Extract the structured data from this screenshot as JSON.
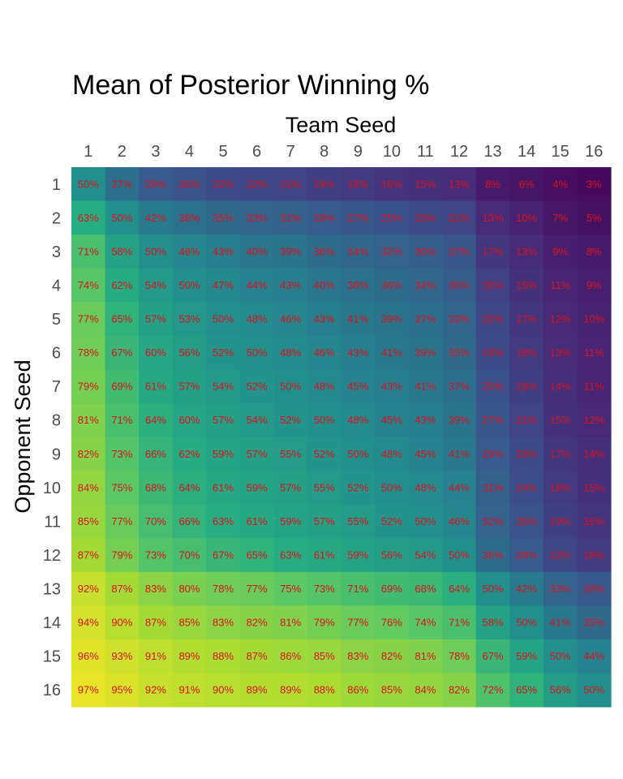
{
  "chart_data": {
    "type": "heatmap",
    "title": "Mean of Posterior Winning %",
    "xlabel": "Team Seed",
    "ylabel": "Opponent Seed",
    "x_categories": [
      "1",
      "2",
      "3",
      "4",
      "5",
      "6",
      "7",
      "8",
      "9",
      "10",
      "11",
      "12",
      "13",
      "14",
      "15",
      "16"
    ],
    "y_categories": [
      "1",
      "2",
      "3",
      "4",
      "5",
      "6",
      "7",
      "8",
      "9",
      "10",
      "11",
      "12",
      "13",
      "14",
      "15",
      "16"
    ],
    "x_axis_position": "top",
    "value_unit": "%",
    "colormap": "viridis",
    "label_color": "#e0101a",
    "values": [
      [
        50,
        37,
        29,
        26,
        23,
        22,
        21,
        19,
        18,
        16,
        15,
        13,
        8,
        6,
        4,
        3
      ],
      [
        63,
        50,
        42,
        38,
        35,
        33,
        31,
        29,
        27,
        25,
        23,
        21,
        13,
        10,
        7,
        5
      ],
      [
        71,
        58,
        50,
        46,
        43,
        40,
        39,
        36,
        34,
        32,
        30,
        27,
        17,
        13,
        9,
        8
      ],
      [
        74,
        62,
        54,
        50,
        47,
        44,
        43,
        40,
        38,
        36,
        34,
        30,
        20,
        15,
        11,
        9
      ],
      [
        77,
        65,
        57,
        53,
        50,
        48,
        46,
        43,
        41,
        39,
        37,
        33,
        22,
        17,
        12,
        10
      ],
      [
        78,
        67,
        60,
        56,
        52,
        50,
        48,
        46,
        43,
        41,
        39,
        35,
        23,
        18,
        13,
        11
      ],
      [
        79,
        69,
        61,
        57,
        54,
        52,
        50,
        48,
        45,
        43,
        41,
        37,
        25,
        19,
        14,
        11
      ],
      [
        81,
        71,
        64,
        60,
        57,
        54,
        52,
        50,
        48,
        45,
        43,
        39,
        27,
        21,
        15,
        12
      ],
      [
        82,
        73,
        66,
        62,
        59,
        57,
        55,
        52,
        50,
        48,
        45,
        41,
        29,
        23,
        17,
        14
      ],
      [
        84,
        75,
        68,
        64,
        61,
        59,
        57,
        55,
        52,
        50,
        48,
        44,
        31,
        24,
        18,
        15
      ],
      [
        85,
        77,
        70,
        66,
        63,
        61,
        59,
        57,
        55,
        52,
        50,
        46,
        32,
        26,
        19,
        16
      ],
      [
        87,
        79,
        73,
        70,
        67,
        65,
        63,
        61,
        59,
        56,
        54,
        50,
        36,
        29,
        22,
        18
      ],
      [
        92,
        87,
        83,
        80,
        78,
        77,
        75,
        73,
        71,
        69,
        68,
        64,
        50,
        42,
        33,
        28
      ],
      [
        94,
        90,
        87,
        85,
        83,
        82,
        81,
        79,
        77,
        76,
        74,
        71,
        58,
        50,
        41,
        35
      ],
      [
        96,
        93,
        91,
        89,
        88,
        87,
        86,
        85,
        83,
        82,
        81,
        78,
        67,
        59,
        50,
        44
      ],
      [
        97,
        95,
        92,
        91,
        90,
        89,
        89,
        88,
        86,
        85,
        84,
        82,
        72,
        65,
        56,
        50
      ]
    ]
  }
}
